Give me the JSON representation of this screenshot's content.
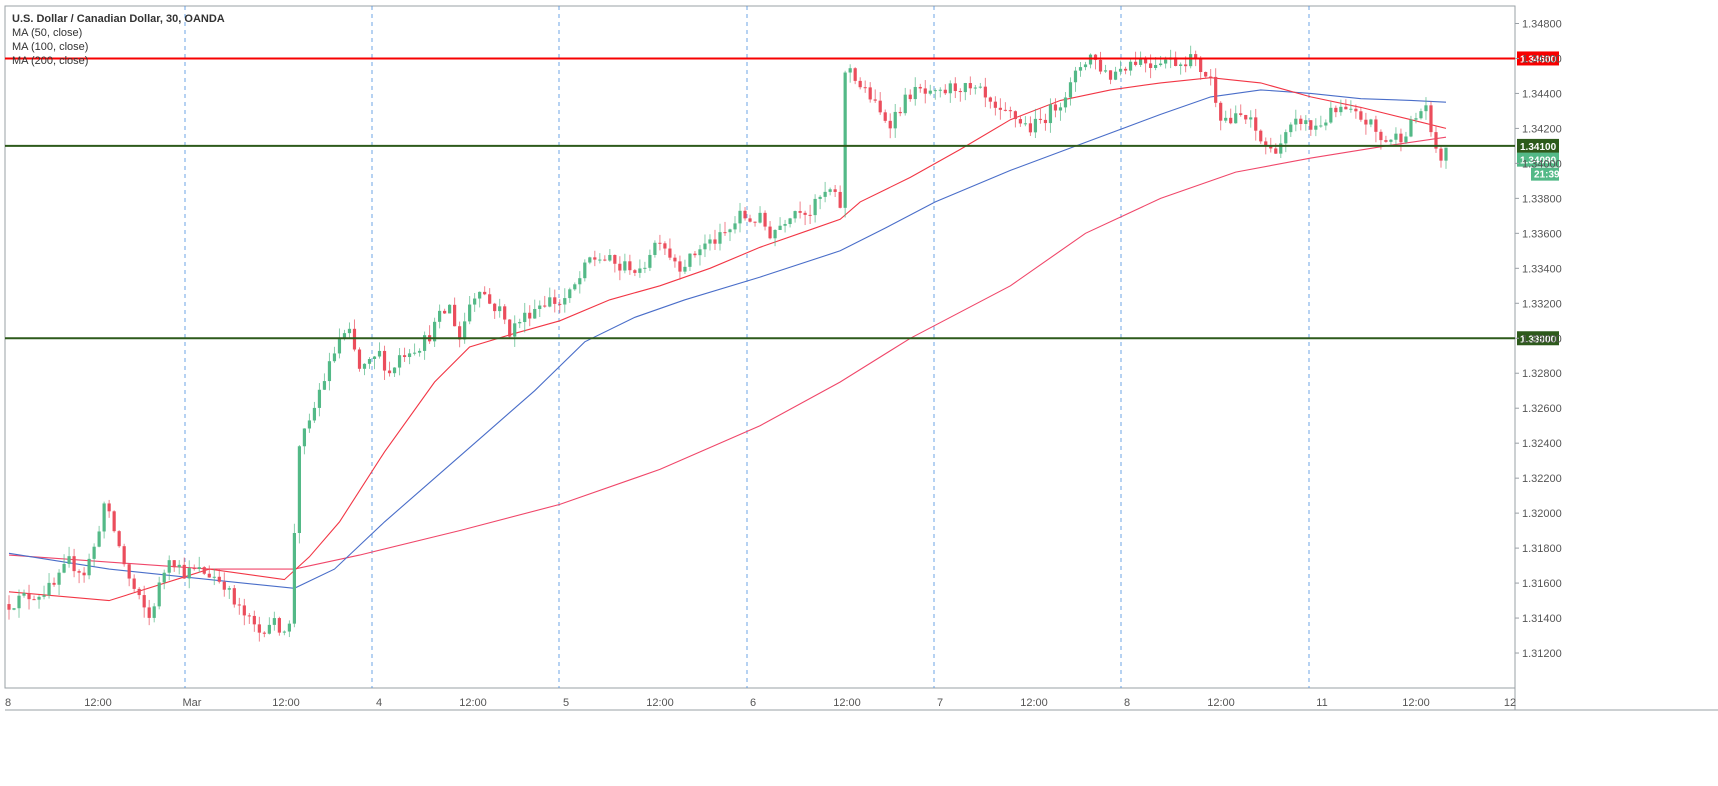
{
  "colors": {
    "up": "#53b987",
    "down": "#eb4d5c",
    "ma50": "#f23645",
    "ma100": "#4a6ec9",
    "ma200": "#f0476a",
    "resistance": "#f70000",
    "support": "#2d5a1b",
    "grid": "#4a8fe0",
    "current": "#53b987"
  },
  "chart_data": {
    "type": "candlestick",
    "title": "U.S. Dollar / Canadian Dollar, 30, OANDA",
    "indicators": [
      "MA (50, close)",
      "MA (100, close)",
      "MA (200, close)"
    ],
    "ylim": [
      1.31,
      1.349
    ],
    "y_ticks": [
      "1.34800",
      "1.34600",
      "1.34400",
      "1.34200",
      "1.34000",
      "1.33800",
      "1.33600",
      "1.33400",
      "1.33200",
      "1.33000",
      "1.32800",
      "1.32600",
      "1.32400",
      "1.32200",
      "1.32000",
      "1.31800",
      "1.31600",
      "1.31400",
      "1.31200"
    ],
    "x_tick_labels": [
      "8",
      "12:00",
      "Mar",
      "12:00",
      "4",
      "12:00",
      "5",
      "12:00",
      "6",
      "12:00",
      "7",
      "12:00",
      "8",
      "12:00",
      "11",
      "12:00",
      "12"
    ],
    "day_separators": [
      "Mar",
      "4",
      "5",
      "6",
      "7",
      "8",
      "11"
    ],
    "horizontal_levels": [
      {
        "label": "1.34600",
        "value": 1.346,
        "kind": "resistance"
      },
      {
        "label": "1.34100",
        "value": 1.341,
        "kind": "support"
      },
      {
        "label": "1.33000",
        "value": 1.33,
        "kind": "support"
      }
    ],
    "last_price": "1.34090",
    "countdown": "21:39",
    "price_path": [
      [
        0,
        1.3148
      ],
      [
        3,
        1.3152
      ],
      [
        6,
        1.3154
      ],
      [
        9,
        1.3158
      ],
      [
        12,
        1.3172
      ],
      [
        15,
        1.3166
      ],
      [
        17,
        1.318
      ],
      [
        19,
        1.3205
      ],
      [
        21,
        1.319
      ],
      [
        24,
        1.3162
      ],
      [
        26,
        1.315
      ],
      [
        28,
        1.314
      ],
      [
        30,
        1.3158
      ],
      [
        32,
        1.3176
      ],
      [
        35,
        1.3166
      ],
      [
        38,
        1.3167
      ],
      [
        41,
        1.3164
      ],
      [
        43,
        1.316
      ],
      [
        45,
        1.3148
      ],
      [
        48,
        1.3138
      ],
      [
        50,
        1.3132
      ],
      [
        52,
        1.3138
      ],
      [
        54,
        1.3135
      ],
      [
        56,
        1.3135
      ],
      [
        57,
        1.319
      ],
      [
        58,
        1.324
      ],
      [
        60,
        1.325
      ],
      [
        62,
        1.327
      ],
      [
        64,
        1.3284
      ],
      [
        66,
        1.33
      ],
      [
        68,
        1.3302
      ],
      [
        70,
        1.3282
      ],
      [
        72,
        1.3285
      ],
      [
        74,
        1.3291
      ],
      [
        76,
        1.328
      ],
      [
        78,
        1.329
      ],
      [
        80,
        1.3294
      ],
      [
        82,
        1.3296
      ],
      [
        84,
        1.3302
      ],
      [
        86,
        1.3312
      ],
      [
        88,
        1.3318
      ],
      [
        90,
        1.33
      ],
      [
        92,
        1.332
      ],
      [
        94,
        1.333
      ],
      [
        96,
        1.332
      ],
      [
        98,
        1.3316
      ],
      [
        100,
        1.3304
      ],
      [
        102,
        1.331
      ],
      [
        104,
        1.3315
      ],
      [
        106,
        1.332
      ],
      [
        108,
        1.3322
      ],
      [
        110,
        1.332
      ],
      [
        112,
        1.3325
      ],
      [
        114,
        1.3334
      ],
      [
        116,
        1.3345
      ],
      [
        118,
        1.3346
      ],
      [
        120,
        1.3344
      ],
      [
        122,
        1.334
      ],
      [
        124,
        1.3342
      ],
      [
        126,
        1.3336
      ],
      [
        128,
        1.335
      ],
      [
        130,
        1.3358
      ],
      [
        132,
        1.3348
      ],
      [
        134,
        1.3342
      ],
      [
        136,
        1.3345
      ],
      [
        138,
        1.3352
      ],
      [
        140,
        1.3355
      ],
      [
        142,
        1.3357
      ],
      [
        144,
        1.3362
      ],
      [
        146,
        1.337
      ],
      [
        148,
        1.3368
      ],
      [
        150,
        1.3368
      ],
      [
        152,
        1.336
      ],
      [
        154,
        1.3365
      ],
      [
        156,
        1.3372
      ],
      [
        158,
        1.3375
      ],
      [
        160,
        1.3372
      ],
      [
        162,
        1.338
      ],
      [
        164,
        1.3384
      ],
      [
        166,
        1.3376
      ],
      [
        167,
        1.345
      ],
      [
        168,
        1.3455
      ],
      [
        170,
        1.3444
      ],
      [
        172,
        1.3438
      ],
      [
        174,
        1.3428
      ],
      [
        176,
        1.3424
      ],
      [
        178,
        1.3432
      ],
      [
        180,
        1.344
      ],
      [
        182,
        1.3441
      ],
      [
        184,
        1.3438
      ],
      [
        186,
        1.3439
      ],
      [
        188,
        1.3443
      ],
      [
        190,
        1.3444
      ],
      [
        192,
        1.3441
      ],
      [
        194,
        1.344
      ],
      [
        196,
        1.3432
      ],
      [
        198,
        1.3427
      ],
      [
        200,
        1.3428
      ],
      [
        202,
        1.3424
      ],
      [
        204,
        1.342
      ],
      [
        206,
        1.3424
      ],
      [
        208,
        1.343
      ],
      [
        210,
        1.3436
      ],
      [
        212,
        1.3444
      ],
      [
        214,
        1.3456
      ],
      [
        216,
        1.3462
      ],
      [
        218,
        1.3455
      ],
      [
        220,
        1.345
      ],
      [
        222,
        1.3455
      ],
      [
        224,
        1.3458
      ],
      [
        226,
        1.346
      ],
      [
        228,
        1.3457
      ],
      [
        230,
        1.346
      ],
      [
        232,
        1.3459
      ],
      [
        234,
        1.3458
      ],
      [
        236,
        1.3461
      ],
      [
        238,
        1.3454
      ],
      [
        240,
        1.3448
      ],
      [
        242,
        1.3428
      ],
      [
        244,
        1.3424
      ],
      [
        246,
        1.3427
      ],
      [
        248,
        1.3423
      ],
      [
        250,
        1.3413
      ],
      [
        252,
        1.3407
      ],
      [
        254,
        1.3412
      ],
      [
        256,
        1.3419
      ],
      [
        258,
        1.3425
      ],
      [
        260,
        1.342
      ],
      [
        262,
        1.3423
      ],
      [
        264,
        1.3428
      ],
      [
        266,
        1.343
      ],
      [
        268,
        1.3428
      ],
      [
        270,
        1.3426
      ],
      [
        272,
        1.3422
      ],
      [
        274,
        1.3413
      ],
      [
        276,
        1.3414
      ],
      [
        278,
        1.3416
      ],
      [
        280,
        1.3422
      ],
      [
        282,
        1.343
      ],
      [
        283,
        1.3434
      ],
      [
        284,
        1.3414
      ],
      [
        286,
        1.3403
      ],
      [
        287,
        1.3409
      ]
    ],
    "ma50": [
      [
        0,
        1.3155
      ],
      [
        20,
        1.315
      ],
      [
        40,
        1.3168
      ],
      [
        55,
        1.3162
      ],
      [
        60,
        1.3175
      ],
      [
        66,
        1.3195
      ],
      [
        75,
        1.3235
      ],
      [
        85,
        1.3275
      ],
      [
        92,
        1.3295
      ],
      [
        100,
        1.3302
      ],
      [
        110,
        1.331
      ],
      [
        120,
        1.3322
      ],
      [
        130,
        1.333
      ],
      [
        140,
        1.334
      ],
      [
        150,
        1.3352
      ],
      [
        160,
        1.3362
      ],
      [
        166,
        1.3368
      ],
      [
        170,
        1.3378
      ],
      [
        180,
        1.3392
      ],
      [
        190,
        1.3408
      ],
      [
        200,
        1.3425
      ],
      [
        210,
        1.3436
      ],
      [
        220,
        1.3442
      ],
      [
        230,
        1.3446
      ],
      [
        240,
        1.3449
      ],
      [
        250,
        1.3446
      ],
      [
        260,
        1.3438
      ],
      [
        270,
        1.3432
      ],
      [
        280,
        1.3425
      ],
      [
        287,
        1.342
      ]
    ],
    "ma100": [
      [
        0,
        1.3177
      ],
      [
        20,
        1.3168
      ],
      [
        40,
        1.3162
      ],
      [
        57,
        1.3157
      ],
      [
        65,
        1.3168
      ],
      [
        75,
        1.3195
      ],
      [
        85,
        1.322
      ],
      [
        95,
        1.3245
      ],
      [
        105,
        1.327
      ],
      [
        115,
        1.3298
      ],
      [
        125,
        1.3312
      ],
      [
        135,
        1.3322
      ],
      [
        150,
        1.3335
      ],
      [
        166,
        1.335
      ],
      [
        175,
        1.3363
      ],
      [
        185,
        1.3378
      ],
      [
        200,
        1.3396
      ],
      [
        215,
        1.3412
      ],
      [
        230,
        1.3428
      ],
      [
        240,
        1.3438
      ],
      [
        250,
        1.3442
      ],
      [
        260,
        1.344
      ],
      [
        270,
        1.3437
      ],
      [
        280,
        1.3436
      ],
      [
        287,
        1.3435
      ]
    ],
    "ma200": [
      [
        0,
        1.3176
      ],
      [
        40,
        1.3168
      ],
      [
        57,
        1.3168
      ],
      [
        70,
        1.3176
      ],
      [
        90,
        1.319
      ],
      [
        110,
        1.3205
      ],
      [
        130,
        1.3225
      ],
      [
        150,
        1.325
      ],
      [
        166,
        1.3275
      ],
      [
        180,
        1.33
      ],
      [
        200,
        1.333
      ],
      [
        215,
        1.336
      ],
      [
        230,
        1.338
      ],
      [
        245,
        1.3395
      ],
      [
        260,
        1.3403
      ],
      [
        275,
        1.341
      ],
      [
        287,
        1.3415
      ]
    ]
  }
}
